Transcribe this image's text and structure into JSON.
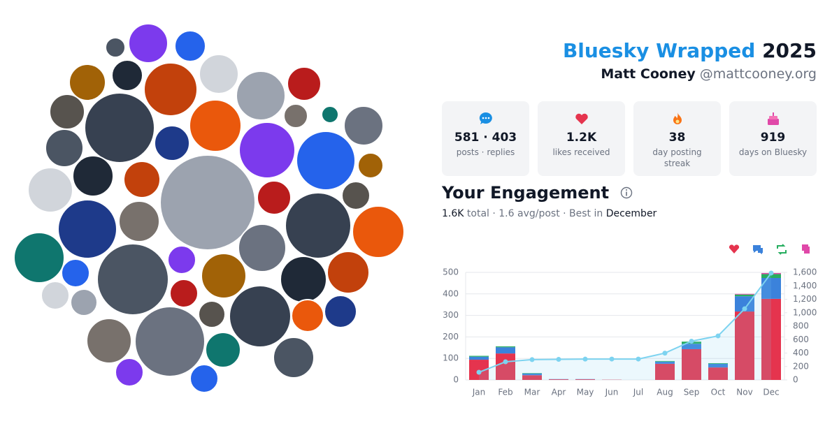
{
  "header": {
    "title": "Bluesky Wrapped",
    "year": "2025",
    "name": "Matt Cooney",
    "handle": "@mattcooney.org"
  },
  "stats": [
    {
      "value": "581 · 403",
      "label": "posts · replies"
    },
    {
      "value": "1.2K",
      "label": "likes received"
    },
    {
      "value": "38",
      "label": "day posting streak"
    },
    {
      "value": "919",
      "label": "days on Bluesky"
    }
  ],
  "engagement": {
    "title": "Your Engagement",
    "total": "1.6K",
    "text": "total · 1.6 avg/post · Best in",
    "best": "December"
  },
  "chart_data": {
    "type": "bar",
    "categories": [
      "Jan",
      "Feb",
      "Mar",
      "Apr",
      "May",
      "Jun",
      "Jul",
      "Aug",
      "Sep",
      "Oct",
      "Nov",
      "Dec"
    ],
    "series": [
      {
        "color": "#e5344e",
        "values": [
          94,
          123,
          22,
          3,
          3,
          1,
          0,
          75,
          143,
          58,
          318,
          377
        ]
      },
      {
        "color": "#3b82db",
        "values": [
          14,
          29,
          8,
          1,
          1,
          0,
          0,
          10,
          25,
          17,
          71,
          97
        ]
      },
      {
        "color": "#27ae60",
        "values": [
          4,
          4,
          2,
          0,
          0,
          0,
          0,
          3,
          10,
          3,
          8,
          18
        ]
      },
      {
        "color": "#e048a8",
        "values": [
          0,
          0,
          0,
          0,
          0,
          0,
          0,
          0,
          0,
          0,
          3,
          5
        ]
      },
      {
        "color": "#7dd3f0",
        "axis": "y2",
        "values": [
          114,
          270,
          302,
          306,
          310,
          311,
          311,
          399,
          577,
          655,
          1058,
          1590
        ]
      }
    ],
    "ylim": [
      0,
      500
    ],
    "yticks": [
      0,
      100,
      200,
      300,
      400,
      500
    ],
    "y2lim": [
      0,
      1600
    ],
    "y2ticks": [
      0,
      200,
      400,
      600,
      800,
      {
        "value": 1000,
        "label": "1,000"
      },
      {
        "value": 1200,
        "label": "1,200"
      },
      {
        "value": 1400,
        "label": "1,400"
      },
      {
        "value": 1600,
        "label": "1,600"
      }
    ],
    "grid": true
  }
}
